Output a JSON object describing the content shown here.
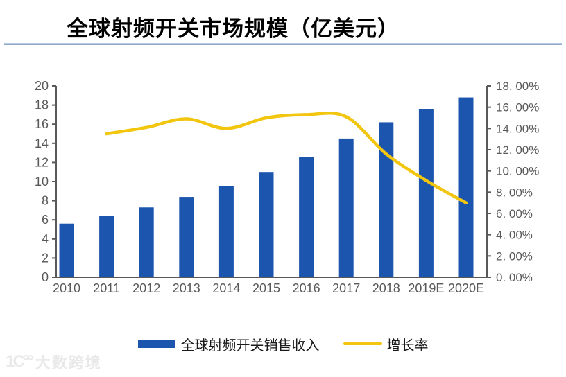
{
  "title": "全球射频开关市场规模（亿美元）",
  "legend": {
    "bar": "全球射频开关销售收入",
    "line": "增长率"
  },
  "watermark": {
    "logo": "1C°°",
    "text": "大数跨境"
  },
  "colors": {
    "bar": "#1b55ae",
    "line": "#f2c50e",
    "title_rule": "#8fa8cd",
    "axis": "#595959",
    "axis_text": "#595959",
    "title_text": "#000000",
    "watermark": "#e9e9e9"
  },
  "chart_data": {
    "type": "bar",
    "subtype": "combo-bar-line-dual-axis",
    "title": "全球射频开关市场规模（亿美元）",
    "categories": [
      "2010",
      "2011",
      "2012",
      "2013",
      "2014",
      "2015",
      "2016",
      "2017",
      "2018",
      "2019E",
      "2020E"
    ],
    "series": [
      {
        "name": "全球射频开关销售收入",
        "type": "bar",
        "axis": "left",
        "unit": "亿美元",
        "values": [
          5.6,
          6.4,
          7.3,
          8.4,
          9.5,
          11.0,
          12.6,
          14.5,
          16.2,
          17.6,
          18.8
        ]
      },
      {
        "name": "增长率",
        "type": "line",
        "axis": "right",
        "unit": "%",
        "values": [
          null,
          13.5,
          14.1,
          14.9,
          14.0,
          15.0,
          15.3,
          15.1,
          11.6,
          9.1,
          7.0
        ]
      }
    ],
    "left_axis": {
      "min": 0,
      "max": 20,
      "step": 2,
      "tick_labels": [
        "0",
        "2",
        "4",
        "6",
        "8",
        "10",
        "12",
        "14",
        "16",
        "18",
        "20"
      ]
    },
    "right_axis": {
      "min": 0,
      "max": 18,
      "step": 2,
      "tick_labels": [
        "0. 00%",
        "2. 00%",
        "4. 00%",
        "6. 00%",
        "8. 00%",
        "10. 00%",
        "12. 00%",
        "14. 00%",
        "16. 00%",
        "18. 00%"
      ]
    },
    "grid": false,
    "legend_position": "bottom"
  }
}
